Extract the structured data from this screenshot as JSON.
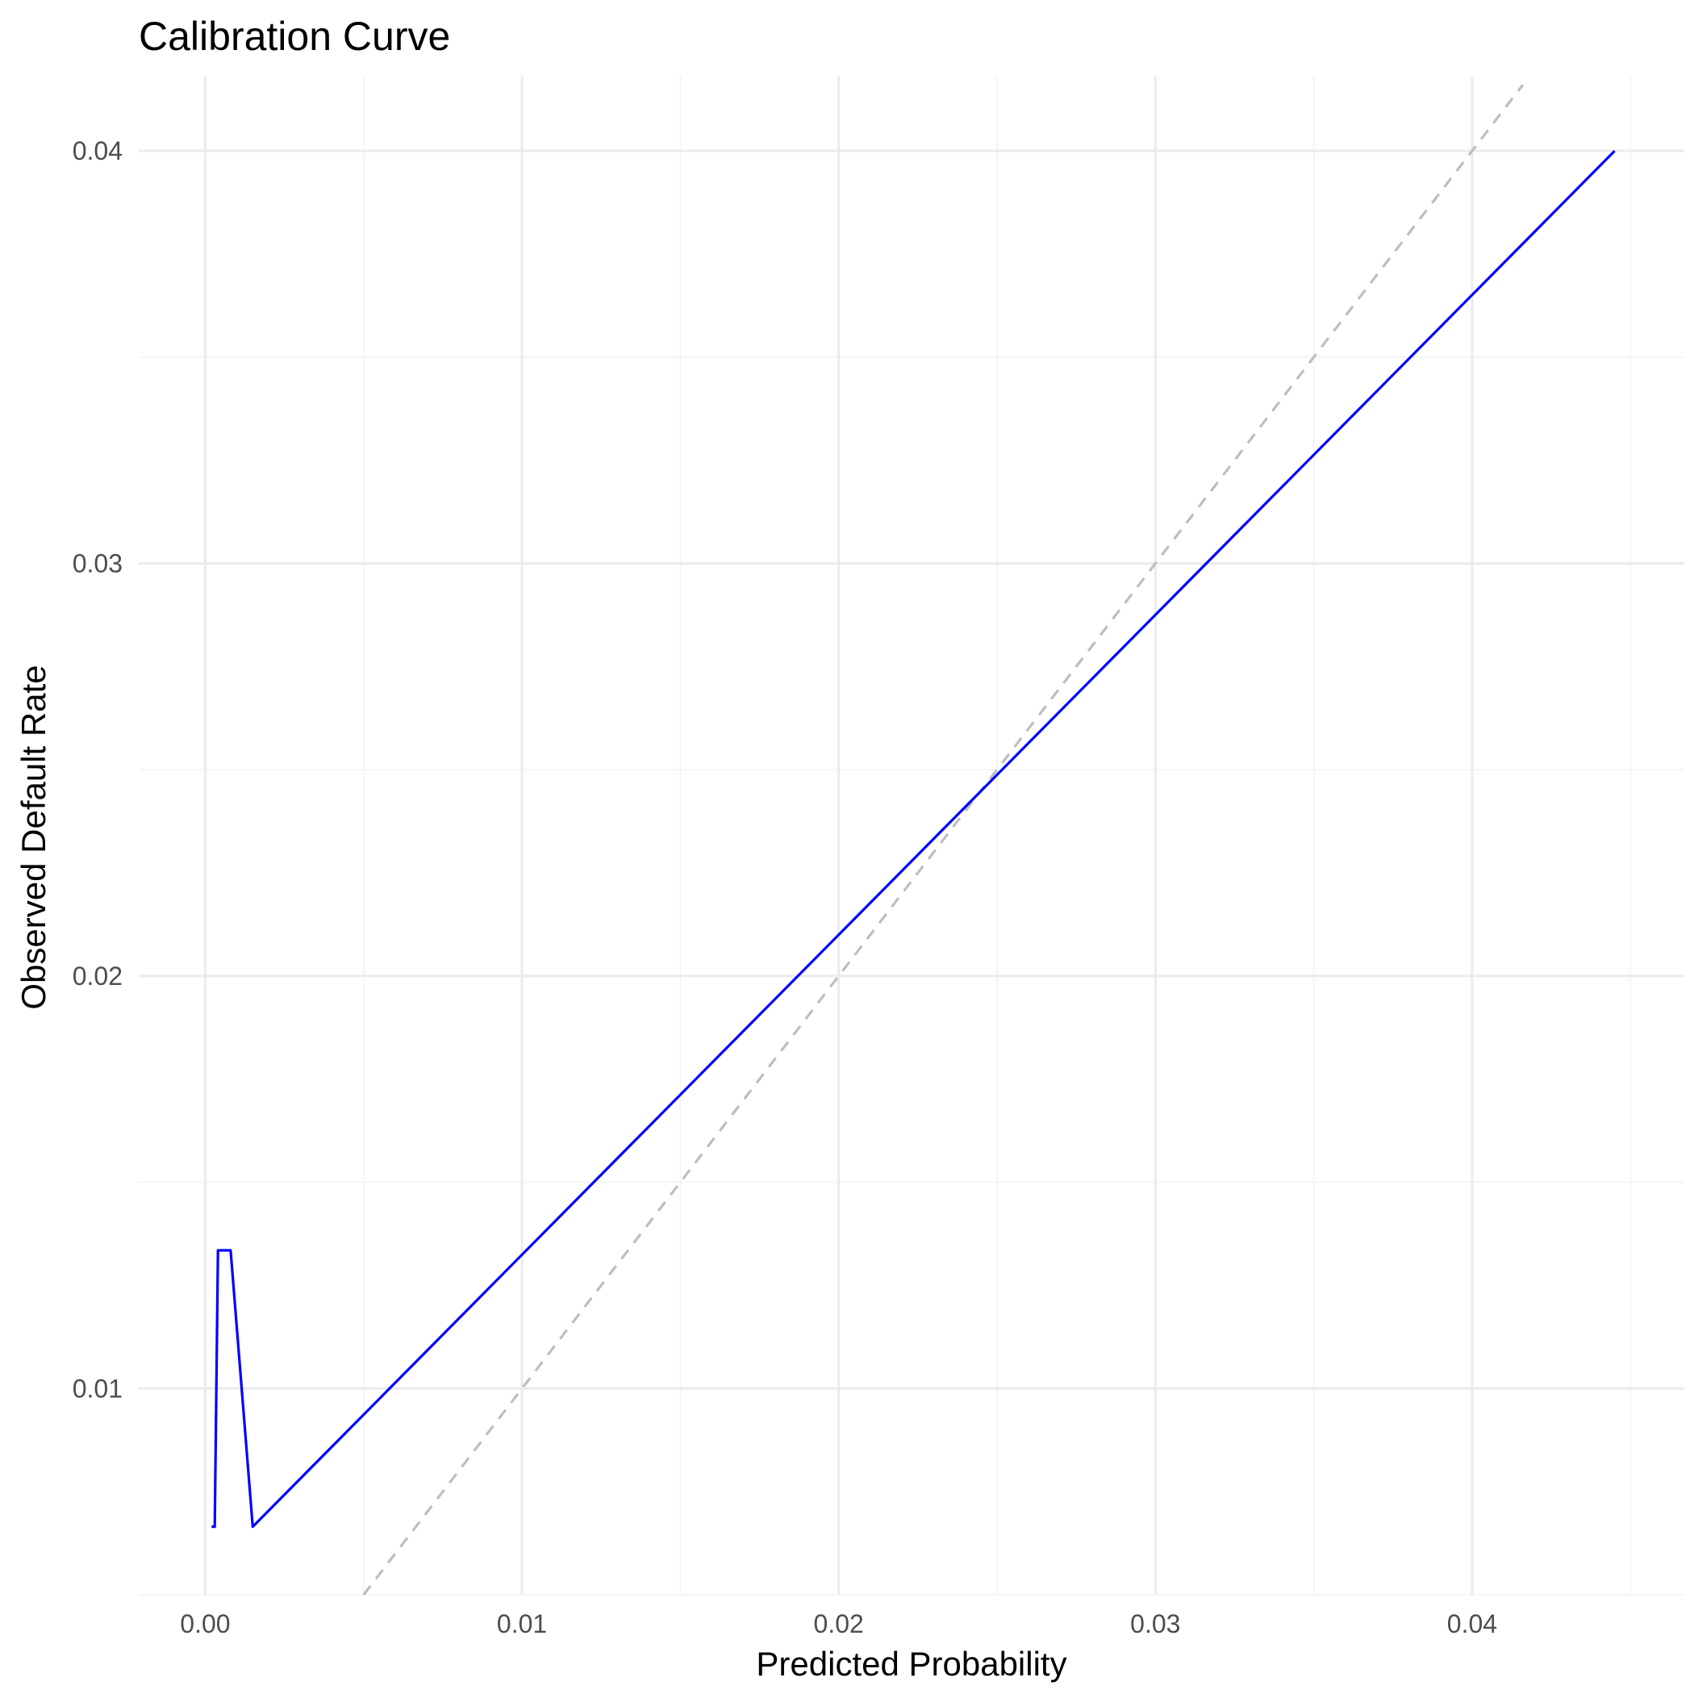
{
  "chart_data": {
    "type": "line",
    "title": "Calibration Curve",
    "xlabel": "Predicted Probability",
    "ylabel": "Observed Default Rate",
    "xlim": [
      -0.0021,
      0.0467
    ],
    "ylim": [
      0.005,
      0.0418
    ],
    "x_ticks": [
      0.0,
      0.01,
      0.02,
      0.03,
      0.04
    ],
    "x_tick_labels": [
      "0.00",
      "0.01",
      "0.02",
      "0.03",
      "0.04"
    ],
    "y_ticks": [
      0.01,
      0.02,
      0.03,
      0.04
    ],
    "y_tick_labels": [
      "0.01",
      "0.02",
      "0.03",
      "0.04"
    ],
    "grid": true,
    "series": [
      {
        "color": "#0000ff",
        "x": [
          0.0002,
          0.0003,
          0.0004,
          0.0008,
          0.0015,
          0.0445
        ],
        "y": [
          0.00665,
          0.00665,
          0.01335,
          0.01335,
          0.00665,
          0.04
        ]
      }
    ],
    "reference_line": {
      "color": "#bebebe",
      "style": "dashed",
      "x": [
        0.005,
        0.0416
      ],
      "y": [
        0.005,
        0.0416
      ]
    }
  }
}
